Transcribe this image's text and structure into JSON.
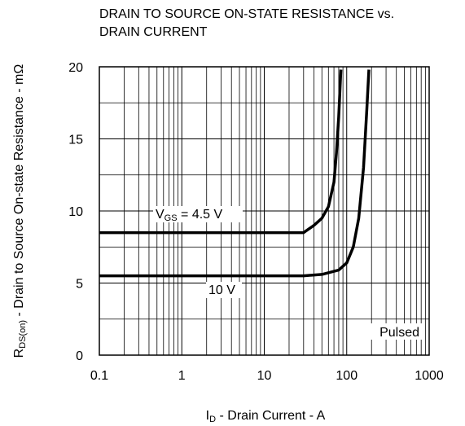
{
  "chart_data": {
    "type": "line",
    "title": [
      "DRAIN TO SOURCE ON-STATE RESISTANCE vs.",
      "DRAIN CURRENT"
    ],
    "xlabel": [
      "I",
      "D",
      " - Drain Current - A"
    ],
    "ylabel": [
      "R",
      "DS(on)",
      " - Drain to Source On-state Resistance - mΩ"
    ],
    "xscale": "log",
    "xlim": [
      0.1,
      1000
    ],
    "xticks": [
      0.1,
      1,
      10,
      100,
      1000
    ],
    "xminor": [
      0.2,
      0.3,
      0.4,
      0.5,
      0.6,
      0.7,
      0.8,
      0.9,
      2,
      3,
      4,
      5,
      6,
      7,
      8,
      9,
      20,
      30,
      40,
      50,
      60,
      70,
      80,
      90,
      200,
      300,
      400,
      500,
      600,
      700,
      800,
      900
    ],
    "ylim": [
      0,
      20
    ],
    "yticks": [
      0,
      5,
      10,
      15,
      20
    ],
    "yminor": [
      2.5,
      7.5,
      12.5,
      17.5
    ],
    "grid": true,
    "series": [
      {
        "name": [
          "V",
          "GS",
          " = 4.5 V"
        ],
        "color": "#000000",
        "x": [
          0.1,
          1,
          10,
          30,
          40,
          50,
          60,
          70,
          75,
          80,
          85
        ],
        "values": [
          8.5,
          8.5,
          8.5,
          8.5,
          9.0,
          9.5,
          10.3,
          12,
          14,
          16.5,
          19.8
        ]
      },
      {
        "name": [
          "10 V"
        ],
        "color": "#000000",
        "x": [
          0.1,
          1,
          10,
          30,
          50,
          80,
          100,
          120,
          140,
          160,
          175,
          186
        ],
        "values": [
          5.5,
          5.5,
          5.5,
          5.5,
          5.6,
          5.9,
          6.4,
          7.5,
          9.5,
          13,
          17,
          19.8
        ]
      }
    ],
    "annotations": [
      "Pulsed"
    ]
  }
}
